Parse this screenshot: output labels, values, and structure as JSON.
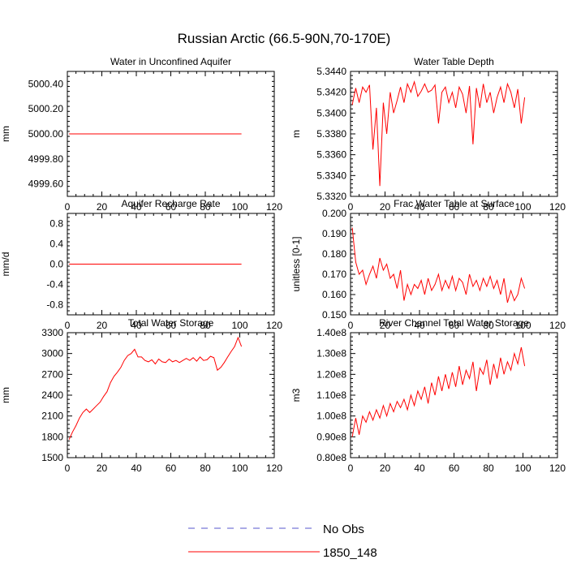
{
  "figure": {
    "title": "Russian Arctic (66.5-90N,70-170E)",
    "legend": [
      {
        "label": "No Obs",
        "color": "#5555cc",
        "style": "dashed"
      },
      {
        "label": "1850_148",
        "color": "#ff0000",
        "style": "solid"
      }
    ]
  },
  "chart_data": [
    {
      "type": "line",
      "title": "Water in Unconfined Aquifer",
      "ylabel": "mm",
      "xlim": [
        0,
        120
      ],
      "ylim": [
        4999.5,
        5000.5
      ],
      "xticks": [
        0,
        20,
        40,
        60,
        80,
        100,
        120
      ],
      "yticks": [
        4999.6,
        4999.8,
        5000.0,
        5000.2,
        5000.4
      ],
      "ytick_labels": [
        "4999.60",
        "4999.80",
        "5000.00",
        "5000.20",
        "5000.40"
      ],
      "series": [
        {
          "name": "1850_148",
          "color": "#ff0000",
          "x_start": 1,
          "x_step": 1,
          "values": [
            5000,
            5000,
            5000,
            5000,
            5000,
            5000,
            5000,
            5000,
            5000,
            5000,
            5000,
            5000,
            5000,
            5000,
            5000,
            5000,
            5000,
            5000,
            5000,
            5000,
            5000,
            5000,
            5000,
            5000,
            5000,
            5000,
            5000,
            5000,
            5000,
            5000,
            5000,
            5000,
            5000,
            5000,
            5000,
            5000,
            5000,
            5000,
            5000,
            5000,
            5000,
            5000,
            5000,
            5000,
            5000,
            5000,
            5000,
            5000,
            5000,
            5000,
            5000,
            5000,
            5000,
            5000,
            5000,
            5000,
            5000,
            5000,
            5000,
            5000,
            5000,
            5000,
            5000,
            5000,
            5000,
            5000,
            5000,
            5000,
            5000,
            5000,
            5000,
            5000,
            5000,
            5000,
            5000,
            5000,
            5000,
            5000,
            5000,
            5000,
            5000,
            5000,
            5000,
            5000,
            5000,
            5000,
            5000,
            5000,
            5000,
            5000,
            5000,
            5000,
            5000,
            5000,
            5000,
            5000,
            5000,
            5000,
            5000,
            5000,
            5000
          ]
        }
      ]
    },
    {
      "type": "line",
      "title": "Water Table Depth",
      "ylabel": "m",
      "xlim": [
        0,
        120
      ],
      "ylim": [
        5.332,
        5.344
      ],
      "xticks": [
        0,
        20,
        40,
        60,
        80,
        100,
        120
      ],
      "yticks": [
        5.332,
        5.334,
        5.336,
        5.338,
        5.34,
        5.342,
        5.344
      ],
      "ytick_labels": [
        "5.3320",
        "5.3340",
        "5.3360",
        "5.3380",
        "5.3400",
        "5.3420",
        "5.3440"
      ],
      "series": [
        {
          "name": "1850_148",
          "color": "#ff0000",
          "x_start": 1,
          "x_step": 2,
          "values": [
            5.3408,
            5.3424,
            5.341,
            5.3425,
            5.342,
            5.3427,
            5.3365,
            5.3405,
            5.333,
            5.341,
            5.338,
            5.342,
            5.34,
            5.3412,
            5.3425,
            5.341,
            5.3428,
            5.342,
            5.343,
            5.3416,
            5.3421,
            5.3428,
            5.342,
            5.3422,
            5.3427,
            5.339,
            5.342,
            5.3425,
            5.341,
            5.342,
            5.3405,
            5.3425,
            5.3418,
            5.34,
            5.3426,
            5.337,
            5.3424,
            5.3405,
            5.3428,
            5.341,
            5.342,
            5.34,
            5.3415,
            5.3425,
            5.341,
            5.3428,
            5.342,
            5.3405,
            5.3423,
            5.339,
            5.3415
          ]
        }
      ]
    },
    {
      "type": "line",
      "title": "Aquifer Recharge Rate",
      "ylabel": "mm/d",
      "xlim": [
        0,
        120
      ],
      "ylim": [
        -1.0,
        1.0
      ],
      "xticks": [
        0,
        20,
        40,
        60,
        80,
        100,
        120
      ],
      "yticks": [
        -0.8,
        -0.4,
        0.0,
        0.4,
        0.8
      ],
      "ytick_labels": [
        "-0.8",
        "-0.4",
        "0.0",
        "0.4",
        "0.8"
      ],
      "series": [
        {
          "name": "1850_148",
          "color": "#ff0000",
          "x_start": 1,
          "x_step": 1,
          "values": [
            0,
            0,
            0,
            0,
            0,
            0,
            0,
            0,
            0,
            0,
            0,
            0,
            0,
            0,
            0,
            0,
            0,
            0,
            0,
            0,
            0,
            0,
            0,
            0,
            0,
            0,
            0,
            0,
            0,
            0,
            0,
            0,
            0,
            0,
            0,
            0,
            0,
            0,
            0,
            0,
            0,
            0,
            0,
            0,
            0,
            0,
            0,
            0,
            0,
            0,
            0,
            0,
            0,
            0,
            0,
            0,
            0,
            0,
            0,
            0,
            0,
            0,
            0,
            0,
            0,
            0,
            0,
            0,
            0,
            0,
            0,
            0,
            0,
            0,
            0,
            0,
            0,
            0,
            0,
            0,
            0,
            0,
            0,
            0,
            0,
            0,
            0,
            0,
            0,
            0,
            0,
            0,
            0,
            0,
            0,
            0,
            0,
            0,
            0,
            0,
            0
          ]
        }
      ]
    },
    {
      "type": "line",
      "title": "Frac Water Table at Surface",
      "ylabel": "unitless [0-1]",
      "xlim": [
        0,
        120
      ],
      "ylim": [
        0.15,
        0.2
      ],
      "xticks": [
        0,
        20,
        40,
        60,
        80,
        100,
        120
      ],
      "yticks": [
        0.15,
        0.16,
        0.17,
        0.18,
        0.19,
        0.2
      ],
      "ytick_labels": [
        "0.150",
        "0.160",
        "0.170",
        "0.180",
        "0.190",
        "0.200"
      ],
      "series": [
        {
          "name": "1850_148",
          "color": "#ff0000",
          "x_start": 1,
          "x_step": 2,
          "values": [
            0.193,
            0.176,
            0.17,
            0.172,
            0.165,
            0.17,
            0.174,
            0.168,
            0.178,
            0.172,
            0.175,
            0.168,
            0.17,
            0.163,
            0.172,
            0.157,
            0.165,
            0.16,
            0.165,
            0.163,
            0.167,
            0.16,
            0.168,
            0.162,
            0.165,
            0.17,
            0.162,
            0.167,
            0.163,
            0.169,
            0.162,
            0.168,
            0.166,
            0.16,
            0.17,
            0.164,
            0.167,
            0.162,
            0.168,
            0.164,
            0.169,
            0.163,
            0.167,
            0.16,
            0.168,
            0.156,
            0.162,
            0.157,
            0.16,
            0.168,
            0.163
          ]
        }
      ]
    },
    {
      "type": "line",
      "title": "Total Water Storage",
      "ylabel": "mm",
      "xlim": [
        0,
        120
      ],
      "ylim": [
        1500,
        3300
      ],
      "xticks": [
        0,
        20,
        40,
        60,
        80,
        100,
        120
      ],
      "yticks": [
        1500,
        1800,
        2100,
        2400,
        2700,
        3000,
        3300
      ],
      "ytick_labels": [
        "1500",
        "1800",
        "2100",
        "2400",
        "2700",
        "3000",
        "3300"
      ],
      "series": [
        {
          "name": "1850_148",
          "color": "#ff0000",
          "x_start": 1,
          "x_step": 2,
          "values": [
            1760,
            1870,
            1960,
            2070,
            2150,
            2200,
            2150,
            2200,
            2250,
            2300,
            2380,
            2450,
            2580,
            2670,
            2730,
            2800,
            2900,
            2970,
            3000,
            3060,
            2950,
            2950,
            2900,
            2880,
            2910,
            2850,
            2920,
            2880,
            2870,
            2920,
            2880,
            2900,
            2870,
            2900,
            2930,
            2900,
            2940,
            2890,
            2950,
            2900,
            2910,
            2960,
            2940,
            2760,
            2800,
            2870,
            2950,
            3030,
            3100,
            3230,
            3100
          ]
        }
      ]
    },
    {
      "type": "line",
      "title": "River Channel Total Water Storage",
      "ylabel": "m3",
      "xlim": [
        0,
        120
      ],
      "ylim": [
        80000000.0,
        140000000.0
      ],
      "xticks": [
        0,
        20,
        40,
        60,
        80,
        100,
        120
      ],
      "yticks": [
        80000000.0,
        90000000.0,
        100000000.0,
        110000000.0,
        120000000.0,
        130000000.0,
        140000000.0
      ],
      "ytick_labels": [
        "0.80e8",
        "0.90e8",
        "1.00e8",
        "1.10e8",
        "1.20e8",
        "1.30e8",
        "1.40e8"
      ],
      "series": [
        {
          "name": "1850_148",
          "color": "#ff0000",
          "x_start": 1,
          "x_step": 2,
          "values": [
            90000000.0,
            99000000.0,
            91000000.0,
            100000000.0,
            97000000.0,
            102000000.0,
            98000000.0,
            103000000.0,
            99000000.0,
            105000000.0,
            100000000.0,
            106000000.0,
            102000000.0,
            107000000.0,
            104000000.0,
            108000000.0,
            103000000.0,
            110000000.0,
            105000000.0,
            112000000.0,
            108000000.0,
            114000000.0,
            106000000.0,
            116000000.0,
            110000000.0,
            119000000.0,
            112000000.0,
            120000000.0,
            113000000.0,
            121000000.0,
            114000000.0,
            124000000.0,
            115000000.0,
            122000000.0,
            118000000.0,
            126000000.0,
            112000000.0,
            123000000.0,
            120000000.0,
            127000000.0,
            115000000.0,
            125000000.0,
            118000000.0,
            128000000.0,
            120000000.0,
            126000000.0,
            122000000.0,
            130000000.0,
            125000000.0,
            133000000.0,
            124000000.0
          ]
        }
      ]
    }
  ]
}
